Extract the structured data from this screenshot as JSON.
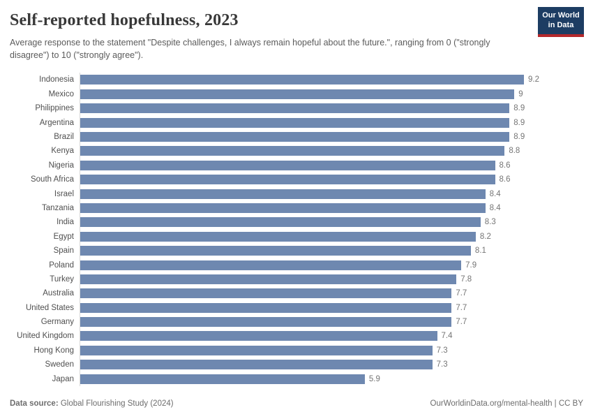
{
  "header": {
    "title": "Self-reported hopefulness, 2023",
    "subtitle": "Average response to the statement \"Despite challenges, I always remain hopeful about the future.\", ranging from 0 (\"strongly disagree\") to 10 (\"strongly agree\").",
    "logo": {
      "line1": "Our World",
      "line2": "in Data"
    }
  },
  "chart_data": {
    "type": "bar",
    "orientation": "horizontal",
    "title": "Self-reported hopefulness, 2023",
    "xlabel": "",
    "ylabel": "",
    "xlim": [
      0,
      9.2
    ],
    "grid": false,
    "legend": false,
    "categories": [
      "Indonesia",
      "Mexico",
      "Philippines",
      "Argentina",
      "Brazil",
      "Kenya",
      "Nigeria",
      "South Africa",
      "Israel",
      "Tanzania",
      "India",
      "Egypt",
      "Spain",
      "Poland",
      "Turkey",
      "Australia",
      "United States",
      "Germany",
      "United Kingdom",
      "Hong Kong",
      "Sweden",
      "Japan"
    ],
    "values": [
      9.2,
      9,
      8.9,
      8.9,
      8.9,
      8.8,
      8.6,
      8.6,
      8.4,
      8.4,
      8.3,
      8.2,
      8.1,
      7.9,
      7.8,
      7.7,
      7.7,
      7.7,
      7.4,
      7.3,
      7.3,
      5.9
    ],
    "value_labels": [
      "9.2",
      "9",
      "8.9",
      "8.9",
      "8.9",
      "8.8",
      "8.6",
      "8.6",
      "8.4",
      "8.4",
      "8.3",
      "8.2",
      "8.1",
      "7.9",
      "7.8",
      "7.7",
      "7.7",
      "7.7",
      "7.4",
      "7.3",
      "7.3",
      "5.9"
    ]
  },
  "footer": {
    "datasource_label": "Data source:",
    "datasource_value": " Global Flourishing Study (2024)",
    "attribution": "OurWorldinData.org/mental-health | CC BY"
  },
  "colors": {
    "bar": "#6e88b0",
    "logo_bg": "#1d3d63",
    "logo_red": "#b5292c",
    "axis_line": "#dadada"
  }
}
